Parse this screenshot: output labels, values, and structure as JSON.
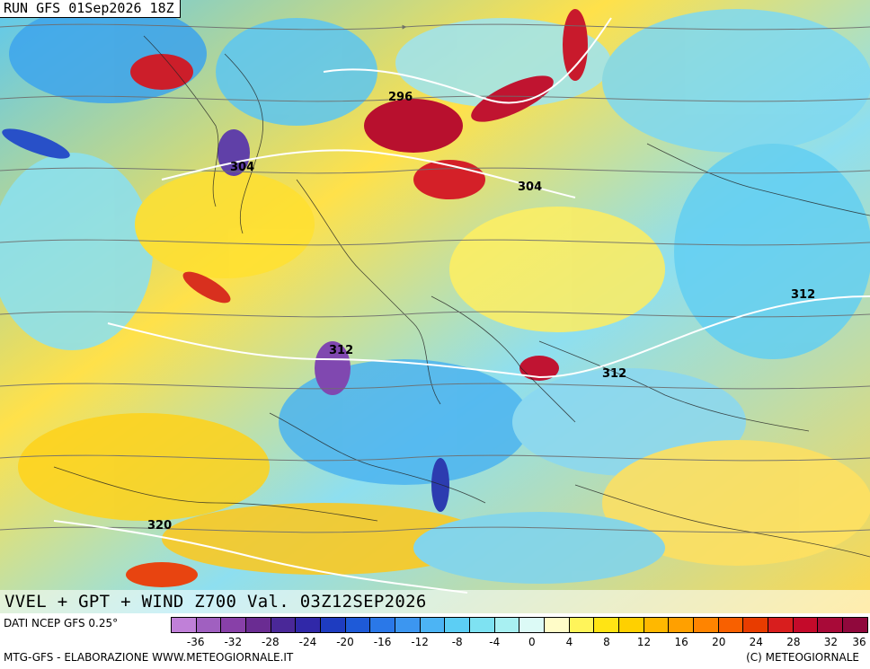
{
  "run_label": "RUN GFS 01Sep2026 18Z",
  "title": "VVEL + GPT + WIND Z700 Val. 03Z12SEP2026",
  "source": "DATI NCEP GFS 0.25°",
  "credit": "MTG-GFS - ELABORAZIONE WWW.METEOGIORNALE.IT",
  "copyright": "(C) METEOGIORNALE",
  "contour_labels": [
    "296",
    "304",
    "304",
    "312",
    "312",
    "312",
    "320"
  ],
  "legend": {
    "colors": [
      "#c080d8",
      "#a060c0",
      "#8840a8",
      "#6a2c92",
      "#4a2898",
      "#3028a8",
      "#1e3cc0",
      "#1e5ad8",
      "#2a78e8",
      "#3c96f0",
      "#4cb4f4",
      "#5ccef4",
      "#7ee2f2",
      "#a8f0f2",
      "#dcfaf6",
      "#fffcc8",
      "#fff45a",
      "#ffe414",
      "#ffd000",
      "#ffb800",
      "#ffa000",
      "#ff8400",
      "#f86000",
      "#e83c00",
      "#d81e1e",
      "#c40a2a",
      "#a80a38",
      "#90083c"
    ],
    "tick_labels": [
      "-36",
      "-32",
      "-28",
      "-24",
      "-20",
      "-16",
      "-12",
      "-8",
      "-4",
      "0",
      "4",
      "8",
      "12",
      "16",
      "20",
      "24",
      "28",
      "32",
      "36"
    ]
  }
}
